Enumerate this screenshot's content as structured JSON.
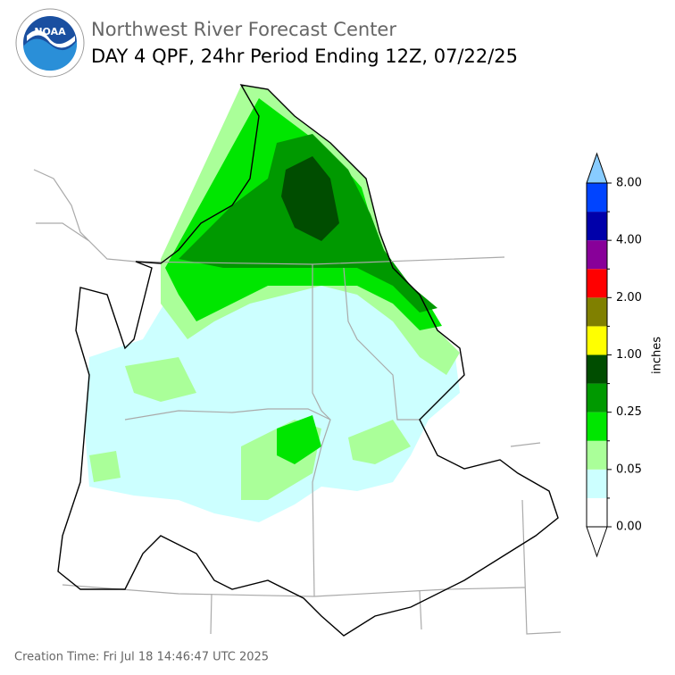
{
  "header": {
    "logo_text": "NOAA",
    "title": "Northwest River Forecast Center",
    "subtitle": "DAY 4 QPF, 24hr Period Ending 12Z, 07/22/25"
  },
  "colorbar": {
    "label": "inches",
    "ticks": [
      {
        "value": 0,
        "label": "0.00"
      },
      {
        "value": 0.05,
        "label": "0.05"
      },
      {
        "value": 0.25,
        "label": "0.25"
      },
      {
        "value": 1,
        "label": "1.00"
      },
      {
        "value": 2,
        "label": "2.00"
      },
      {
        "value": 4,
        "label": "4.00"
      },
      {
        "value": 8,
        "label": "8.00"
      }
    ],
    "colors": [
      "#ffffff",
      "#ccffff",
      "#aaff99",
      "#00e600",
      "#009900",
      "#004d00",
      "#ffff00",
      "#808000",
      "#ff0000",
      "#880099",
      "#0000aa",
      "#0044ff"
    ],
    "under_color": "#ffffff",
    "over_color": "#88ccff"
  },
  "footer": {
    "creation_time": "Creation Time: Fri Jul 18 14:46:47 UTC 2025"
  }
}
